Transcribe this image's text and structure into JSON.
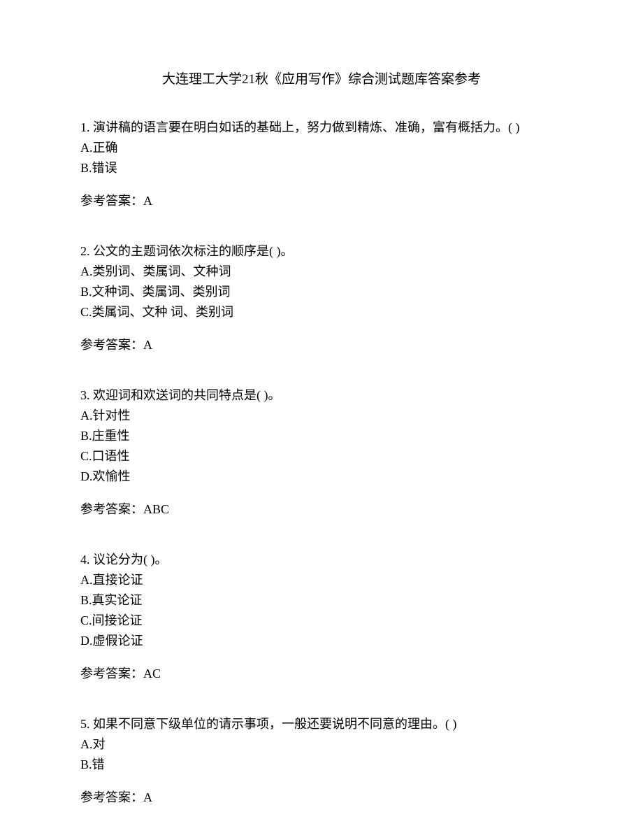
{
  "title": "大连理工大学21秋《应用写作》综合测试题库答案参考",
  "questions": [
    {
      "number": "1.",
      "text": "演讲稿的语言要在明白如话的基础上，努力做到精炼、准确，富有概括力。(    )",
      "options": [
        "A.正确",
        "B.错误"
      ],
      "answer_label": "参考答案：",
      "answer": "A"
    },
    {
      "number": "2.",
      "text": "公文的主题词依次标注的顺序是(   )。",
      "options": [
        "A.类别词、类属词、文种词",
        "B.文种词、类属词、类别词",
        "C.类属词、文种  词、类别词"
      ],
      "answer_label": "参考答案：",
      "answer": "A"
    },
    {
      "number": "3.",
      "text": "欢迎词和欢送词的共同特点是(   )。",
      "options": [
        "A.针对性",
        "B.庄重性",
        "C.口语性",
        "D.欢愉性"
      ],
      "answer_label": "参考答案：",
      "answer": "ABC"
    },
    {
      "number": "4.",
      "text": "议论分为(   )。",
      "options": [
        "A.直接论证",
        "B.真实论证",
        "C.间接论证",
        "D.虚假论证"
      ],
      "answer_label": "参考答案：",
      "answer": "AC"
    },
    {
      "number": "5.",
      "text": "如果不同意下级单位的请示事项，一般还要说明不同意的理由。(   )",
      "options": [
        "A.对",
        "B.错"
      ],
      "answer_label": "参考答案：",
      "answer": "A"
    }
  ]
}
